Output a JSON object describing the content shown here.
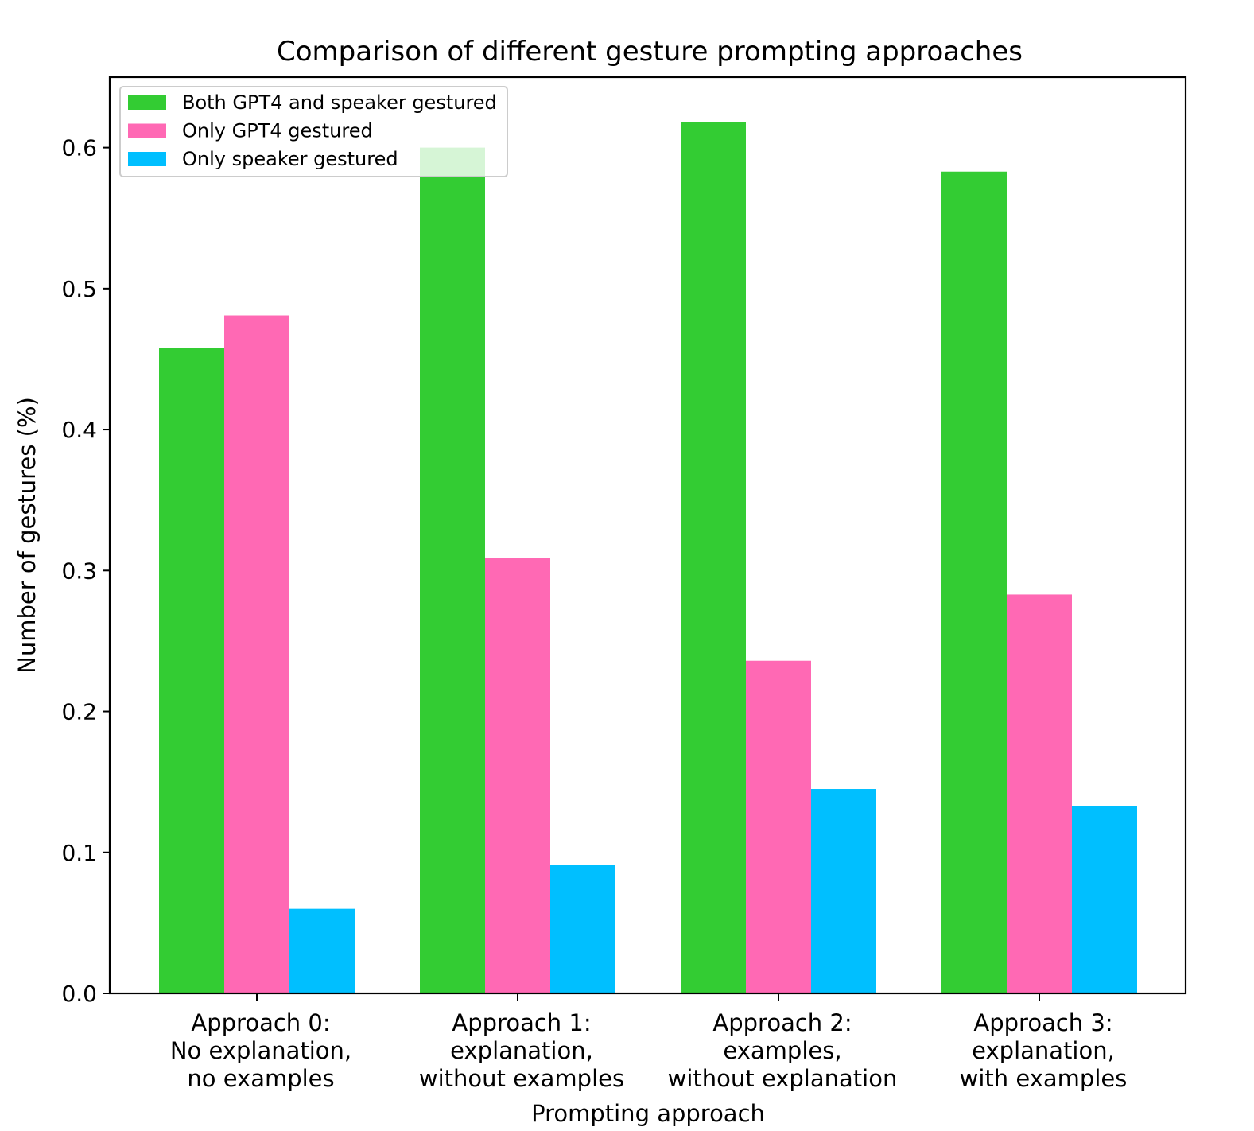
{
  "chart_data": {
    "type": "bar",
    "title": "Comparison of different gesture prompting approaches",
    "xlabel": "Prompting approach",
    "ylabel": "Number of gestures (%)",
    "ylim": [
      0,
      0.65
    ],
    "yticks": [
      0.0,
      0.1,
      0.2,
      0.3,
      0.4,
      0.5,
      0.6
    ],
    "ytick_labels": [
      "0.0",
      "0.1",
      "0.2",
      "0.3",
      "0.4",
      "0.5",
      "0.6"
    ],
    "categories": [
      [
        "Approach 0:",
        "No explanation,",
        "no examples"
      ],
      [
        "Approach 1:",
        "explanation,",
        "without examples"
      ],
      [
        "Approach 2:",
        "examples,",
        "without explanation"
      ],
      [
        "Approach 3:",
        "explanation,",
        "with examples"
      ]
    ],
    "series": [
      {
        "name": "Both GPT4 and speaker gestured",
        "color": "#33cc33",
        "values": [
          0.458,
          0.6,
          0.618,
          0.583
        ]
      },
      {
        "name": "Only GPT4 gestured",
        "color": "#ff69b4",
        "values": [
          0.481,
          0.309,
          0.236,
          0.283
        ]
      },
      {
        "name": "Only speaker gestured",
        "color": "#00bfff",
        "values": [
          0.06,
          0.091,
          0.145,
          0.133
        ]
      }
    ],
    "legend_position": "top-left",
    "grid": false
  }
}
